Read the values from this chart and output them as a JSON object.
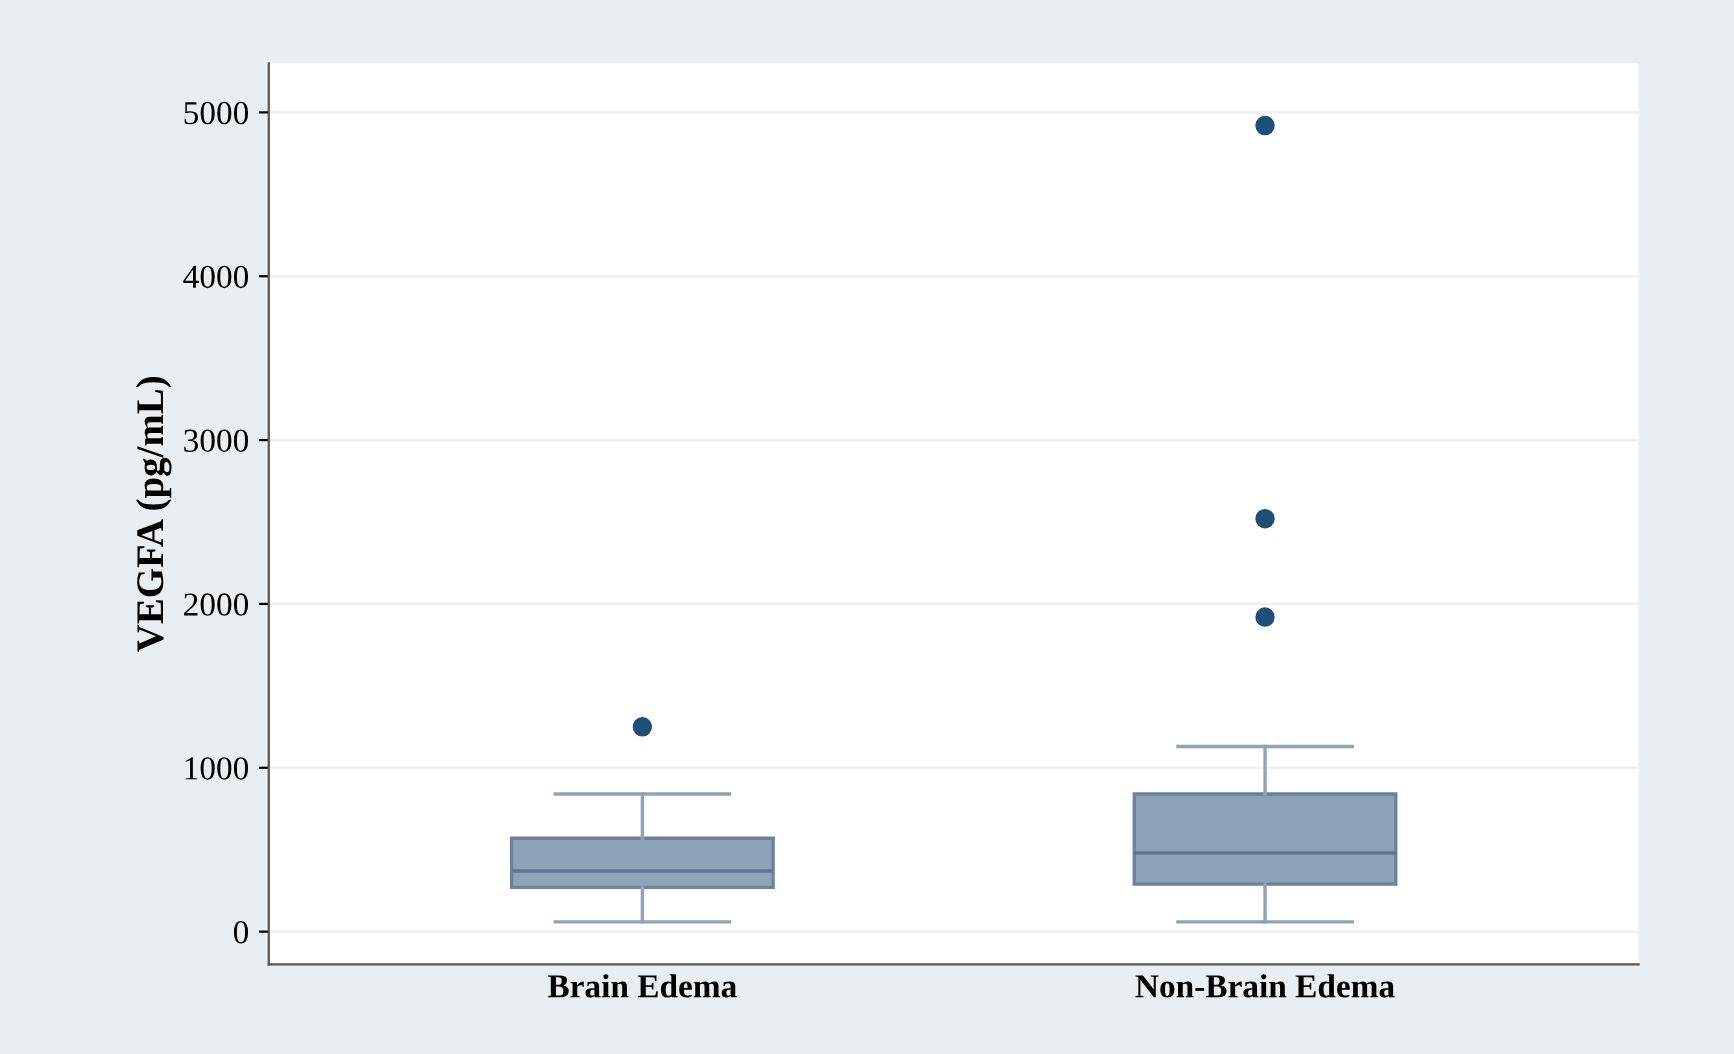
{
  "chart_data": {
    "type": "box",
    "ylabel": "VEGFA (pg/mL)",
    "categories": [
      "Brain Edema",
      "Non-Brain Edema"
    ],
    "series": [
      {
        "color": "#8fa3b8",
        "boxes": [
          {
            "low": 60,
            "q1": 270,
            "median": 370,
            "q3": 570,
            "high": 840,
            "outliers": [
              1250
            ]
          },
          {
            "low": 60,
            "q1": 290,
            "median": 480,
            "q3": 840,
            "high": 1130,
            "outliers": [
              1920,
              2520,
              4920
            ]
          }
        ]
      }
    ],
    "ylim": [
      -200,
      5300
    ],
    "yticks": [
      0,
      1000,
      2000,
      3000,
      4000,
      5000
    ],
    "grid": "y"
  }
}
